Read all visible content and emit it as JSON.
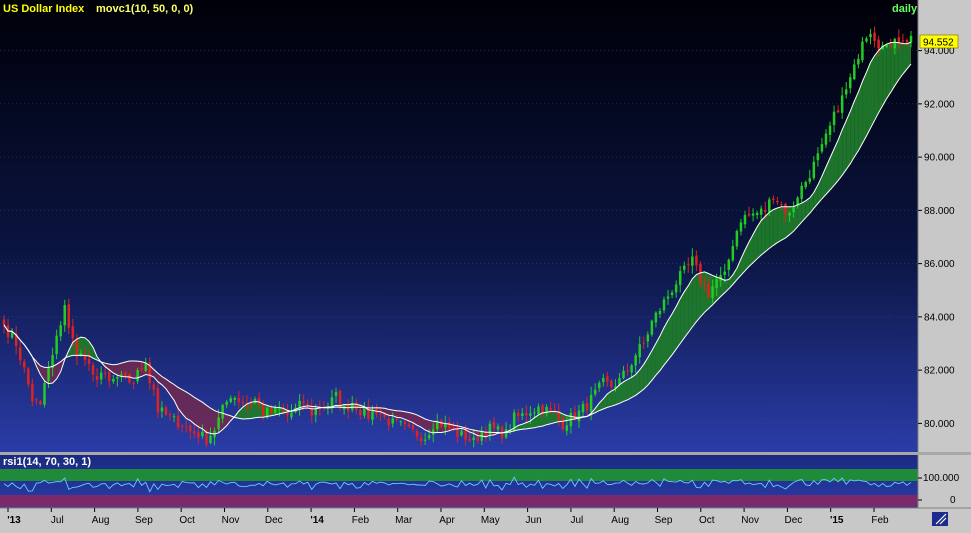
{
  "header": {
    "symbol": "US Dollar Index",
    "study": "movc1(10, 50, 0, 0)",
    "period": "daily"
  },
  "price_tag": "94.552",
  "rsi_panel": {
    "label": "rsi1(14, 70, 30, 1)",
    "ticks": [
      "100.000",
      "0"
    ]
  },
  "colors": {
    "up_candle": "#22cc22",
    "down_candle": "#dd2222",
    "fill_bull": "#1f7a2a",
    "fill_bear": "#6a2a55",
    "title_text": "#ffff00",
    "study_text": "#ffff66",
    "period_text": "#66ff66",
    "ma_fast": "#ffffff",
    "ma_slow": "#ffffff",
    "rsi_line": "#66ccff"
  },
  "chart_data": {
    "type": "candlestick",
    "title": "US Dollar Index",
    "x_labels": [
      "'13",
      "Jul",
      "Aug",
      "Sep",
      "Oct",
      "Nov",
      "Dec",
      "'14",
      "Feb",
      "Mar",
      "Apr",
      "May",
      "Jun",
      "Jul",
      "Aug",
      "Sep",
      "Oct",
      "Nov",
      "Dec",
      "'15",
      "Feb"
    ],
    "y_ticks": [
      80,
      82,
      84,
      86,
      88,
      90,
      92,
      94
    ],
    "ylim": [
      79.0,
      95.3
    ],
    "last_price": 94.552,
    "close_path": [
      {
        "i": 0,
        "v": 83.7
      },
      {
        "i": 3,
        "v": 83.0
      },
      {
        "i": 5,
        "v": 82.0
      },
      {
        "i": 7,
        "v": 80.9
      },
      {
        "i": 9,
        "v": 80.6
      },
      {
        "i": 10,
        "v": 81.5
      },
      {
        "i": 12,
        "v": 82.5
      },
      {
        "i": 14,
        "v": 83.8
      },
      {
        "i": 15,
        "v": 84.5
      },
      {
        "i": 16,
        "v": 83.5
      },
      {
        "i": 18,
        "v": 82.7
      },
      {
        "i": 20,
        "v": 82.4
      },
      {
        "i": 22,
        "v": 81.7
      },
      {
        "i": 24,
        "v": 81.9
      },
      {
        "i": 26,
        "v": 81.5
      },
      {
        "i": 28,
        "v": 81.7
      },
      {
        "i": 30,
        "v": 81.6
      },
      {
        "i": 32,
        "v": 81.6
      },
      {
        "i": 34,
        "v": 82.1
      },
      {
        "i": 35,
        "v": 82.4
      },
      {
        "i": 36,
        "v": 81.6
      },
      {
        "i": 37,
        "v": 81.3
      },
      {
        "i": 38,
        "v": 80.5
      },
      {
        "i": 40,
        "v": 80.3
      },
      {
        "i": 42,
        "v": 80.1
      },
      {
        "i": 44,
        "v": 80.0
      },
      {
        "i": 46,
        "v": 79.7
      },
      {
        "i": 48,
        "v": 79.6
      },
      {
        "i": 50,
        "v": 79.4
      },
      {
        "i": 52,
        "v": 79.8
      },
      {
        "i": 54,
        "v": 80.5
      },
      {
        "i": 56,
        "v": 81.1
      },
      {
        "i": 58,
        "v": 80.9
      },
      {
        "i": 60,
        "v": 80.7
      },
      {
        "i": 62,
        "v": 80.9
      },
      {
        "i": 64,
        "v": 80.4
      },
      {
        "i": 66,
        "v": 80.4
      },
      {
        "i": 68,
        "v": 80.5
      },
      {
        "i": 70,
        "v": 80.3
      },
      {
        "i": 72,
        "v": 80.5
      },
      {
        "i": 74,
        "v": 80.8
      },
      {
        "i": 76,
        "v": 80.4
      },
      {
        "i": 78,
        "v": 80.6
      },
      {
        "i": 80,
        "v": 80.7
      },
      {
        "i": 82,
        "v": 81.0
      },
      {
        "i": 84,
        "v": 80.5
      },
      {
        "i": 86,
        "v": 80.8
      },
      {
        "i": 88,
        "v": 80.5
      },
      {
        "i": 90,
        "v": 80.3
      },
      {
        "i": 92,
        "v": 80.5
      },
      {
        "i": 94,
        "v": 80.2
      },
      {
        "i": 96,
        "v": 80.0
      },
      {
        "i": 98,
        "v": 79.9
      },
      {
        "i": 100,
        "v": 79.7
      },
      {
        "i": 102,
        "v": 79.6
      },
      {
        "i": 104,
        "v": 79.5
      },
      {
        "i": 106,
        "v": 80.0
      },
      {
        "i": 108,
        "v": 80.0
      },
      {
        "i": 110,
        "v": 79.8
      },
      {
        "i": 112,
        "v": 79.6
      },
      {
        "i": 114,
        "v": 79.5
      },
      {
        "i": 116,
        "v": 79.3
      },
      {
        "i": 118,
        "v": 79.7
      },
      {
        "i": 120,
        "v": 79.8
      },
      {
        "i": 122,
        "v": 79.7
      },
      {
        "i": 124,
        "v": 79.6
      },
      {
        "i": 126,
        "v": 80.2
      },
      {
        "i": 128,
        "v": 80.3
      },
      {
        "i": 130,
        "v": 80.5
      },
      {
        "i": 132,
        "v": 80.6
      },
      {
        "i": 134,
        "v": 80.5
      },
      {
        "i": 136,
        "v": 80.3
      },
      {
        "i": 138,
        "v": 80.0
      },
      {
        "i": 140,
        "v": 80.2
      },
      {
        "i": 142,
        "v": 80.4
      },
      {
        "i": 144,
        "v": 80.7
      },
      {
        "i": 146,
        "v": 81.1
      },
      {
        "i": 148,
        "v": 81.5
      },
      {
        "i": 150,
        "v": 81.4
      },
      {
        "i": 152,
        "v": 81.6
      },
      {
        "i": 154,
        "v": 82.0
      },
      {
        "i": 156,
        "v": 82.6
      },
      {
        "i": 158,
        "v": 83.0
      },
      {
        "i": 160,
        "v": 83.8
      },
      {
        "i": 162,
        "v": 84.3
      },
      {
        "i": 164,
        "v": 84.8
      },
      {
        "i": 166,
        "v": 85.3
      },
      {
        "i": 168,
        "v": 85.7
      },
      {
        "i": 170,
        "v": 86.1
      },
      {
        "i": 172,
        "v": 85.4
      },
      {
        "i": 174,
        "v": 84.9
      },
      {
        "i": 176,
        "v": 85.4
      },
      {
        "i": 178,
        "v": 85.5
      },
      {
        "i": 180,
        "v": 86.8
      },
      {
        "i": 182,
        "v": 87.7
      },
      {
        "i": 184,
        "v": 87.8
      },
      {
        "i": 186,
        "v": 87.9
      },
      {
        "i": 188,
        "v": 88.0
      },
      {
        "i": 190,
        "v": 88.6
      },
      {
        "i": 192,
        "v": 88.2
      },
      {
        "i": 194,
        "v": 87.8
      },
      {
        "i": 196,
        "v": 88.6
      },
      {
        "i": 198,
        "v": 89.1
      },
      {
        "i": 200,
        "v": 89.7
      },
      {
        "i": 202,
        "v": 90.3
      },
      {
        "i": 204,
        "v": 91.1
      },
      {
        "i": 206,
        "v": 91.9
      },
      {
        "i": 208,
        "v": 92.5
      },
      {
        "i": 210,
        "v": 93.3
      },
      {
        "i": 212,
        "v": 94.5
      },
      {
        "i": 214,
        "v": 94.8
      },
      {
        "i": 216,
        "v": 94.3
      },
      {
        "i": 218,
        "v": 94.0
      },
      {
        "i": 220,
        "v": 94.6
      },
      {
        "i": 222,
        "v": 94.3
      },
      {
        "i": 224,
        "v": 94.55
      }
    ],
    "rsi": {
      "ylim": [
        0,
        100
      ],
      "overbought": 70,
      "oversold": 30,
      "typical_level": 60
    }
  }
}
